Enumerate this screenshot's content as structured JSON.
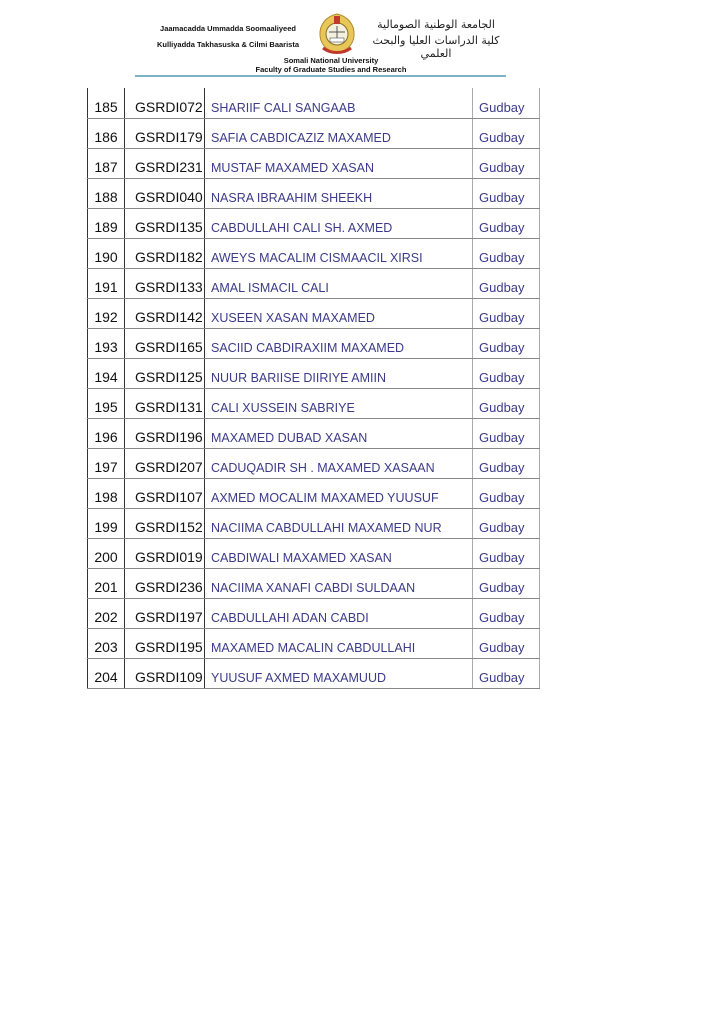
{
  "header": {
    "left_line1": "Jaamacadda Ummadda Soomaaliyeed",
    "left_line2": "Kulliyadda Takhasuska & Cilmi Baarista",
    "right_line1": "الجامعة الوطنية الصومالية",
    "right_line2": "كلية الدراسات العليا والبحث العلمي",
    "center_line1": "Somali National University",
    "center_line2": "Faculty of Graduate Studies and Research"
  },
  "rows": [
    {
      "no": "185",
      "id": "GSRDI072",
      "name": "SHARIIF CALI SANGAAB",
      "status": "Gudbay"
    },
    {
      "no": "186",
      "id": "GSRDI179",
      "name": "SAFIA CABDICAZIZ MAXAMED",
      "status": "Gudbay"
    },
    {
      "no": "187",
      "id": "GSRDI231",
      "name": "MUSTAF MAXAMED XASAN",
      "status": "Gudbay"
    },
    {
      "no": "188",
      "id": "GSRDI040",
      "name": "NASRA IBRAAHIM SHEEKH",
      "status": "Gudbay"
    },
    {
      "no": "189",
      "id": "GSRDI135",
      "name": "CABDULLAHI CALI SH. AXMED",
      "status": "Gudbay"
    },
    {
      "no": "190",
      "id": "GSRDI182",
      "name": "AWEYS MACALIM CISMAACIL XIRSI",
      "status": "Gudbay"
    },
    {
      "no": "191",
      "id": "GSRDI133",
      "name": "AMAL ISMACIL CALI",
      "status": "Gudbay"
    },
    {
      "no": "192",
      "id": "GSRDI142",
      "name": "XUSEEN XASAN MAXAMED",
      "status": "Gudbay"
    },
    {
      "no": "193",
      "id": "GSRDI165",
      "name": "SACIID CABDIRAXIIM MAXAMED",
      "status": "Gudbay"
    },
    {
      "no": "194",
      "id": "GSRDI125",
      "name": "NUUR BARIISE DIIRIYE AMIIN",
      "status": "Gudbay"
    },
    {
      "no": "195",
      "id": "GSRDI131",
      "name": "CALI XUSSEIN SABRIYE",
      "status": "Gudbay"
    },
    {
      "no": "196",
      "id": "GSRDI196",
      "name": "MAXAMED DUBAD XASAN",
      "status": "Gudbay"
    },
    {
      "no": "197",
      "id": "GSRDI207",
      "name": "CADUQADIR SH . MAXAMED XASAAN",
      "status": "Gudbay"
    },
    {
      "no": "198",
      "id": "GSRDI107",
      "name": "AXMED MOCALIM MAXAMED YUUSUF",
      "status": "Gudbay"
    },
    {
      "no": "199",
      "id": "GSRDI152",
      "name": "NACIIMA CABDULLAHI MAXAMED NUR",
      "status": "Gudbay"
    },
    {
      "no": "200",
      "id": "GSRDI019",
      "name": "CABDIWALI MAXAMED XASAN",
      "status": "Gudbay"
    },
    {
      "no": "201",
      "id": "GSRDI236",
      "name": "NACIIMA XANAFI CABDI SULDAAN",
      "status": "Gudbay"
    },
    {
      "no": "202",
      "id": "GSRDI197",
      "name": "CABDULLAHI ADAN CABDI",
      "status": "Gudbay"
    },
    {
      "no": "203",
      "id": "GSRDI195",
      "name": "MAXAMED MACALIN CABDULLAHI",
      "status": "Gudbay"
    },
    {
      "no": "204",
      "id": "GSRDI109",
      "name": "YUUSUF AXMED MAXAMUUD",
      "status": "Gudbay"
    }
  ]
}
